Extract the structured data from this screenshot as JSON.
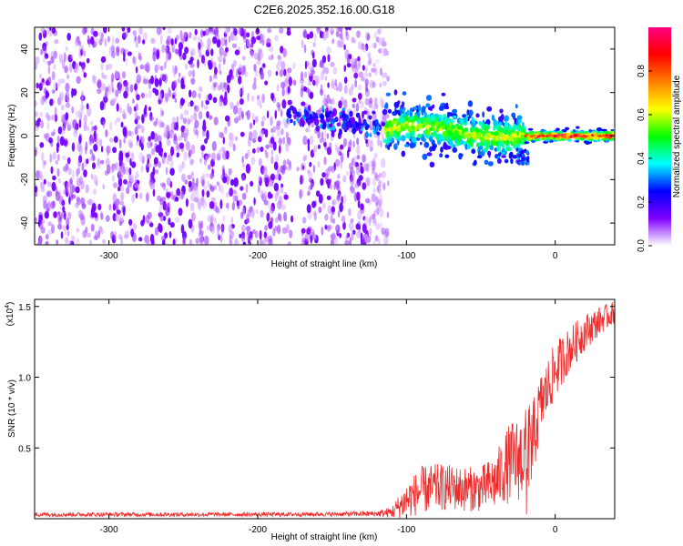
{
  "title": "C2E6.2025.352.16.00.G18",
  "chart_data": [
    {
      "type": "heatmap",
      "xlabel": "Height of straight line (km)",
      "ylabel": "Frequency (Hz)",
      "xlim": [
        -350,
        40
      ],
      "ylim": [
        -50,
        50
      ],
      "x_ticks": [
        -300,
        -200,
        -100,
        0
      ],
      "y_ticks": [
        -40,
        -20,
        0,
        20,
        40
      ],
      "grid": false,
      "colorbar": {
        "label": "Normalized spectral amplitude",
        "range": [
          0,
          1
        ],
        "ticks": [
          "0.0",
          "0.2",
          "0.4",
          "0.6",
          "0.8"
        ],
        "colors": [
          "#ffffff",
          "#8000ff",
          "#0000ff",
          "#00ffff",
          "#00ff00",
          "#ffff00",
          "#ff8000",
          "#ff0000",
          "#ff0080"
        ]
      },
      "features": [
        {
          "x_range": [
            -350,
            -115
          ],
          "freq_range": [
            -50,
            50
          ],
          "amplitude": "0.05-0.15",
          "description_label": ""
        },
        {
          "x_range": [
            -180,
            -115
          ],
          "freq_center": [
            10,
            3
          ],
          "amplitude": "0.1-0.4"
        },
        {
          "x_range": [
            -115,
            -20
          ],
          "freq_center": [
            3,
            1
          ],
          "freq_spread": [
            8,
            12
          ],
          "amplitude": "0.2-0.6"
        },
        {
          "x_range": [
            -20,
            40
          ],
          "freq_center": [
            0,
            0
          ],
          "freq_spread": [
            3,
            3
          ],
          "amplitude": "0.6-1.0"
        }
      ]
    },
    {
      "type": "line",
      "xlabel": "Height of straight line (km)",
      "ylabel": "SNR (10 * v/v)",
      "y_scale_label": "(x10",
      "y_scale_exp": "4",
      "xlim": [
        -350,
        40
      ],
      "ylim": [
        0,
        15500
      ],
      "x_ticks": [
        -300,
        -200,
        -100,
        0
      ],
      "y_ticks": [
        {
          "v": 5000,
          "label": "0.5"
        },
        {
          "v": 10000,
          "label": "1.0"
        },
        {
          "v": 15000,
          "label": "1.5"
        }
      ],
      "grid": false,
      "series": [
        {
          "color": "#ee2b2b",
          "x": [
            -350,
            -300,
            -250,
            -200,
            -150,
            -120,
            -110,
            -100,
            -90,
            -80,
            -70,
            -60,
            -50,
            -40,
            -35,
            -30,
            -25,
            -20,
            -15,
            -10,
            0,
            10,
            20,
            30,
            40
          ],
          "mean": [
            300,
            300,
            300,
            300,
            320,
            350,
            450,
            1300,
            2000,
            2200,
            2200,
            2100,
            2100,
            2600,
            3400,
            4000,
            4200,
            4600,
            5500,
            8000,
            10500,
            12000,
            13200,
            14000,
            14600
          ],
          "spread": [
            150,
            150,
            150,
            150,
            150,
            200,
            400,
            1300,
            1700,
            1700,
            1600,
            1600,
            1600,
            2000,
            2400,
            2900,
            3000,
            3200,
            2800,
            2200,
            2000,
            1600,
            1300,
            1000,
            800
          ]
        }
      ]
    }
  ]
}
